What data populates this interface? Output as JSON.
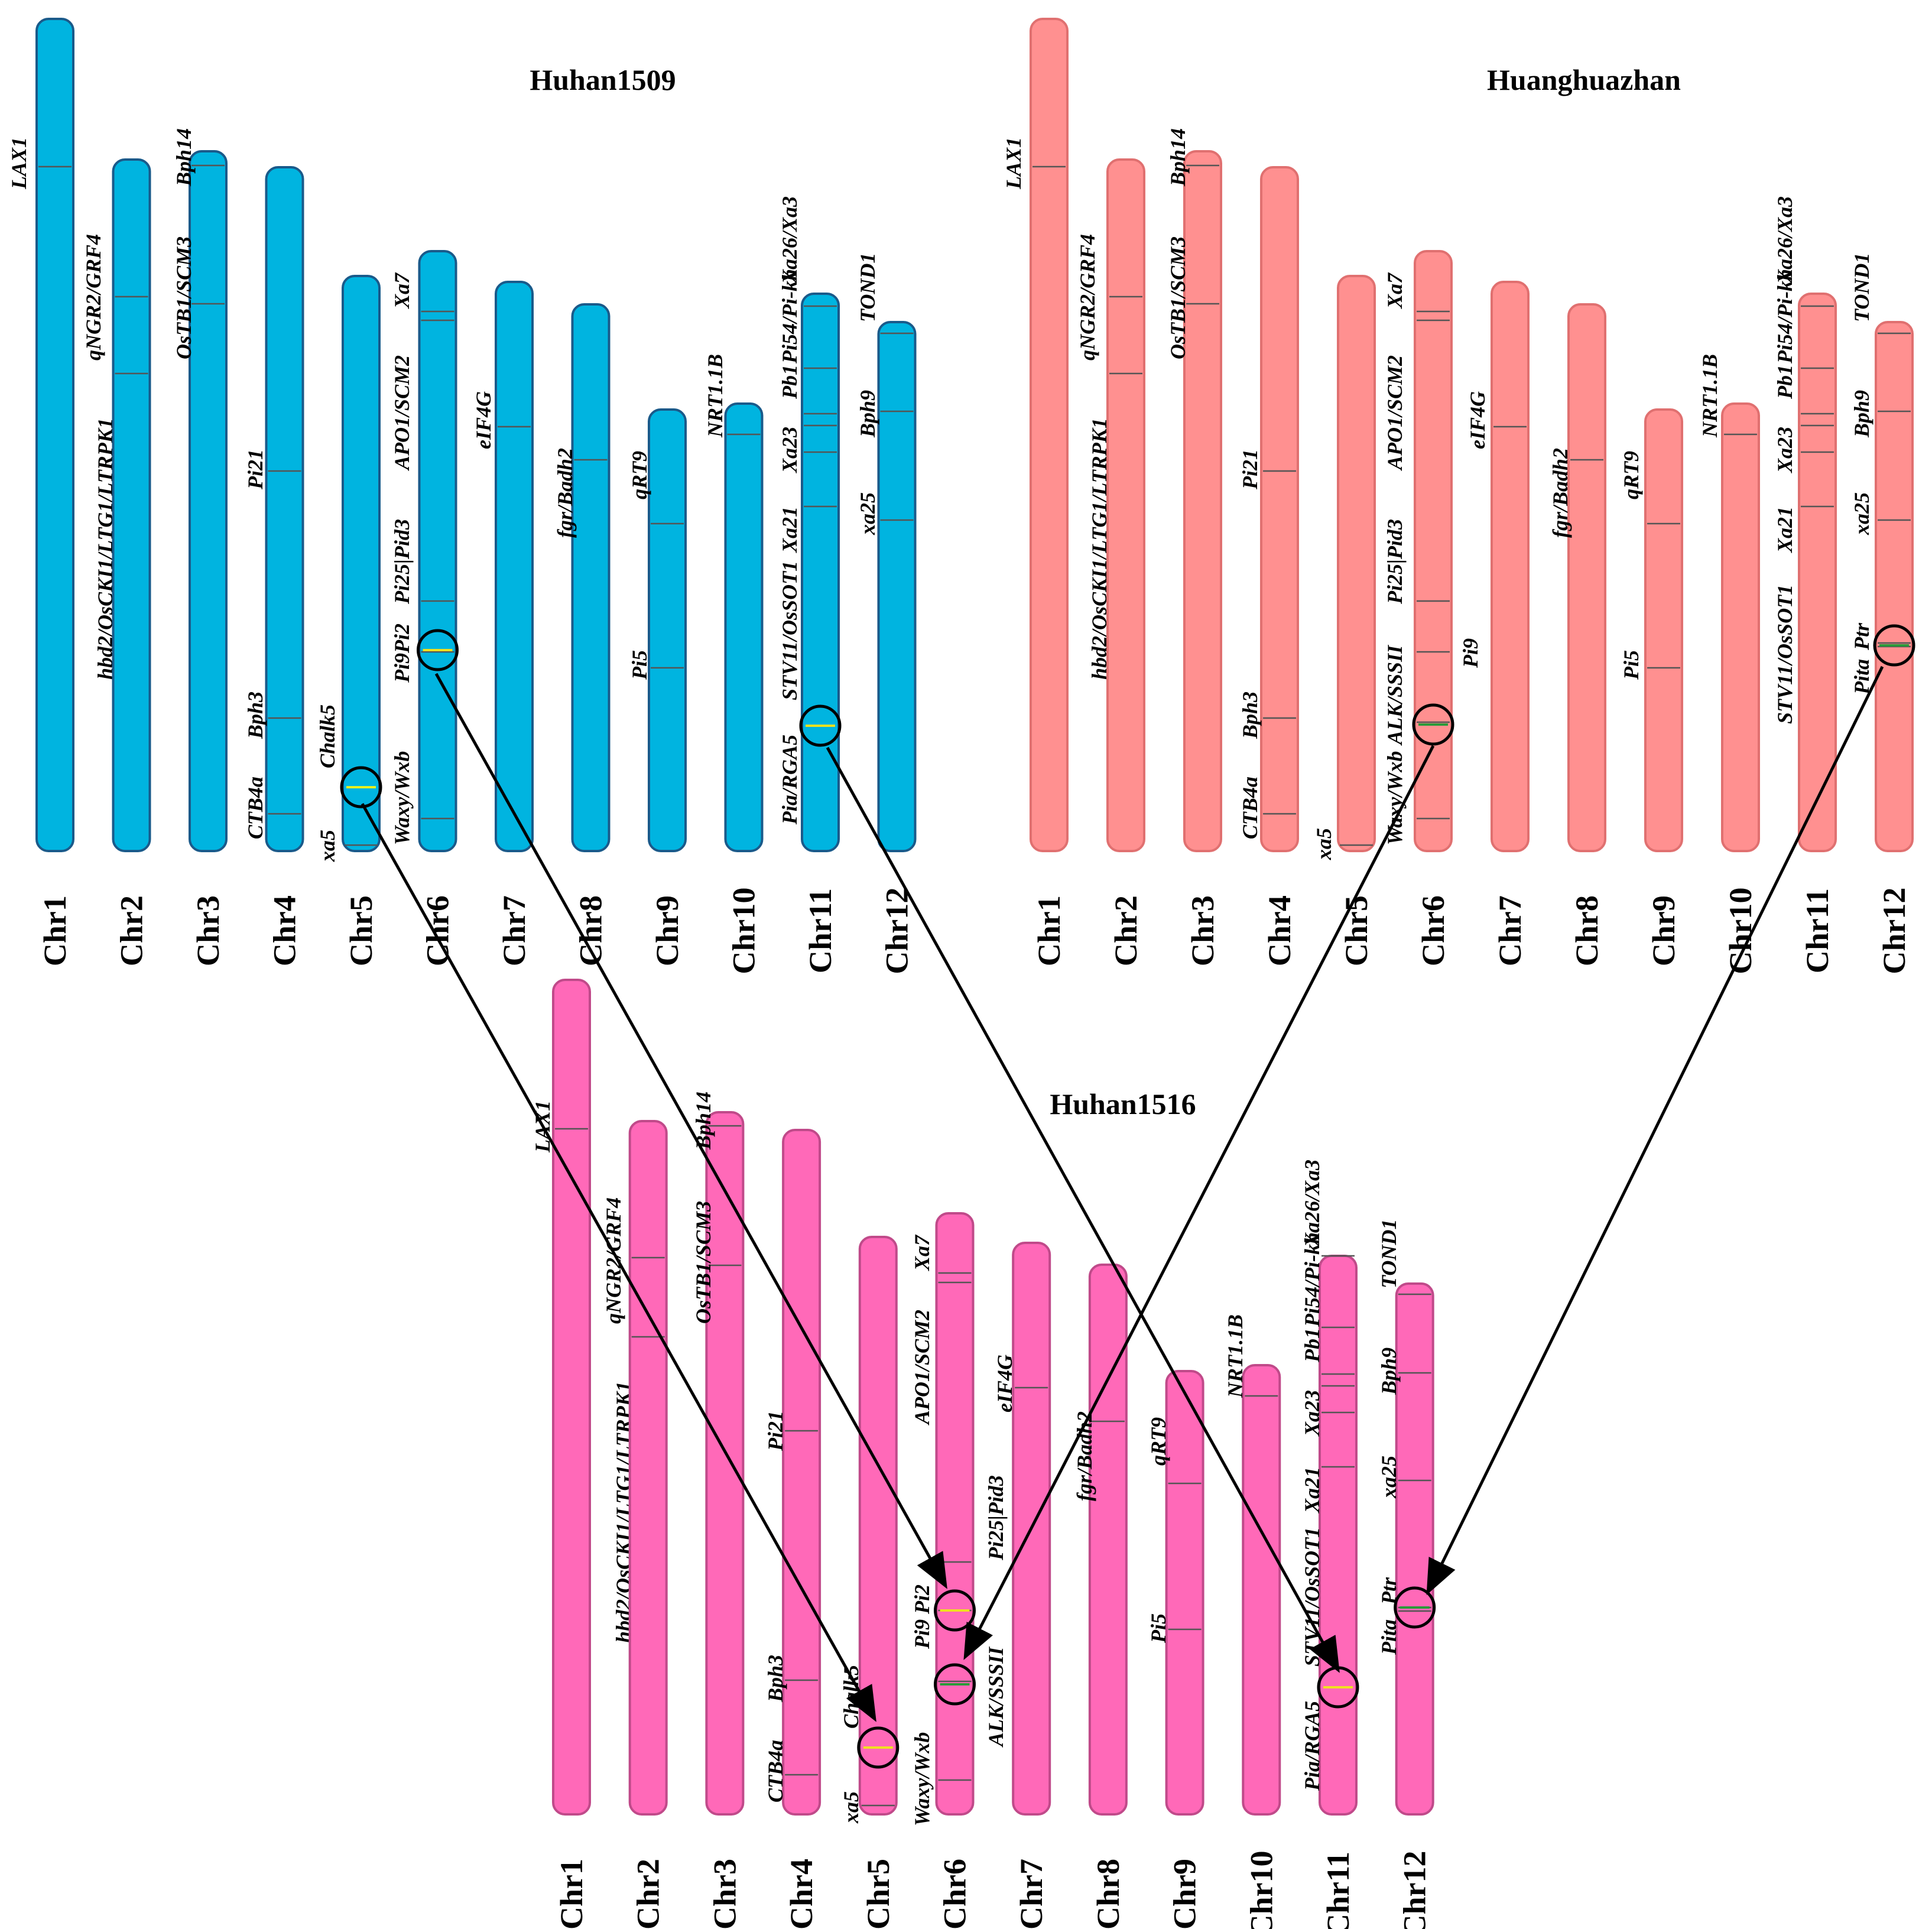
{
  "figure": {
    "colors": {
      "huhan1509": "#00b4e0",
      "huhan1509_edge": "#1a5a8a",
      "huanghuazhan": "#ff9090",
      "huanghuazhan_edge": "#e07070",
      "huhan1516": "#ff69b8",
      "huhan1516_edge": "#c04a8a",
      "yellow_marker": "#f0e020",
      "green_marker": "#2a9a3a"
    },
    "panels": [
      {
        "id": "huhan1509",
        "title": "Huhan1509",
        "chromosomes": [
          {
            "name": "Chr1",
            "genes": [
              "LAX1",
              "hbd2/OsCKI1/LTG1/LTRPK1"
            ]
          },
          {
            "name": "Chr2",
            "genes": [
              "qNGR2/GRF4"
            ]
          },
          {
            "name": "Chr3",
            "genes": [
              "Bph14",
              "OsTB1/SCM3"
            ]
          },
          {
            "name": "Chr4",
            "genes": [
              "Pi21",
              "Bph3",
              "CTB4a"
            ]
          },
          {
            "name": "Chr5",
            "genes": [
              "Chalk5",
              "xa5"
            ]
          },
          {
            "name": "Chr6",
            "genes": [
              "Xa7",
              "APO1/SCM2",
              "Pi25|Pid3",
              "Pi9Pi2",
              "Waxy/Wxb"
            ]
          },
          {
            "name": "Chr7",
            "genes": [
              "eIF4G"
            ]
          },
          {
            "name": "Chr8",
            "genes": [
              "fgr/Badh2"
            ]
          },
          {
            "name": "Chr9",
            "genes": [
              "qRT9",
              "Pi5"
            ]
          },
          {
            "name": "Chr10",
            "genes": [
              "NRT1.1B"
            ]
          },
          {
            "name": "Chr11",
            "genes": [
              "Xa26/Xa3",
              "Pi54/Pi-kh",
              "Pb1",
              "Xa23",
              "Xa21",
              "STV11/OsSOT1",
              "Pia/RGA5"
            ]
          },
          {
            "name": "Chr12",
            "genes": [
              "TOND1",
              "Bph9",
              "xa25"
            ]
          }
        ]
      },
      {
        "id": "huanghuazhan",
        "title": "Huanghuazhan",
        "chromosomes": [
          {
            "name": "Chr1",
            "genes": [
              "LAX1",
              "hbd2/OsCKI1/LTG1/LTRPK1"
            ]
          },
          {
            "name": "Chr2",
            "genes": [
              "qNGR2/GRF4"
            ]
          },
          {
            "name": "Chr3",
            "genes": [
              "Bph14",
              "OsTB1/SCM3"
            ]
          },
          {
            "name": "Chr4",
            "genes": [
              "Pi21",
              "Bph3",
              "CTB4a"
            ]
          },
          {
            "name": "Chr5",
            "genes": [
              "xa5"
            ]
          },
          {
            "name": "Chr6",
            "genes": [
              "Xa7",
              "APO1/SCM2",
              "Pi25|Pid3",
              "Pi9",
              "ALK/SSSII",
              "Waxy/Wxb"
            ]
          },
          {
            "name": "Chr7",
            "genes": [
              "eIF4G"
            ]
          },
          {
            "name": "Chr8",
            "genes": [
              "fgr/Badh2"
            ]
          },
          {
            "name": "Chr9",
            "genes": [
              "qRT9",
              "Pi5"
            ]
          },
          {
            "name": "Chr10",
            "genes": [
              "NRT1.1B"
            ]
          },
          {
            "name": "Chr11",
            "genes": [
              "Xa26/Xa3",
              "Pi54/Pi-kh",
              "Pb1",
              "Xa23",
              "Xa21",
              "STV11/OsSOT1"
            ]
          },
          {
            "name": "Chr12",
            "genes": [
              "TOND1",
              "Bph9",
              "xa25",
              "Ptr",
              "Pita"
            ]
          }
        ]
      },
      {
        "id": "huhan1516",
        "title": "Huhan1516",
        "chromosomes": [
          {
            "name": "Chr1",
            "genes": [
              "LAX1",
              "hbd2/OsCKI1/LTG1/LTRPK1"
            ]
          },
          {
            "name": "Chr2",
            "genes": [
              "qNGR2/GRF4"
            ]
          },
          {
            "name": "Chr3",
            "genes": [
              "Bph14",
              "OsTB1/SCM3"
            ]
          },
          {
            "name": "Chr4",
            "genes": [
              "Pi21",
              "Bph3",
              "CTB4a"
            ]
          },
          {
            "name": "Chr5",
            "genes": [
              "Chalk5",
              "xa5"
            ]
          },
          {
            "name": "Chr6",
            "genes": [
              "Xa7",
              "APO1/SCM2",
              "Pi25|Pid3",
              "Pi9 Pi2",
              "ALK/SSSII",
              "Waxy/Wxb"
            ]
          },
          {
            "name": "Chr7",
            "genes": [
              "eIF4G"
            ]
          },
          {
            "name": "Chr8",
            "genes": [
              "fgr/Badh2"
            ]
          },
          {
            "name": "Chr9",
            "genes": [
              "qRT9",
              "Pi5"
            ]
          },
          {
            "name": "Chr10",
            "genes": [
              "NRT1.1B"
            ]
          },
          {
            "name": "Chr11",
            "genes": [
              "Xa26/Xa3",
              "Pi54/Pi-kh",
              "Pb1",
              "Xa23",
              "Xa21",
              "STV11/OsSOT1",
              "Pia/RGA5"
            ]
          },
          {
            "name": "Chr12",
            "genes": [
              "TOND1",
              "Bph9",
              "xa25",
              "Ptr",
              "Pita"
            ]
          }
        ]
      }
    ],
    "inheritance_arrows": [
      {
        "from": "Huhan1509 Chr5 Chalk5",
        "to": "Huhan1516 Chr5 Chalk5"
      },
      {
        "from": "Huhan1509 Chr6 Pi9Pi2",
        "to": "Huhan1516 Chr6 Pi9 Pi2"
      },
      {
        "from": "Huhan1509 Chr11 Pia/RGA5",
        "to": "Huhan1516 Chr11 Pia/RGA5"
      },
      {
        "from": "Huanghuazhan Chr6 ALK/SSSII",
        "to": "Huhan1516 Chr6 ALK/SSSII"
      },
      {
        "from": "Huanghuazhan Chr12 Pita Ptr",
        "to": "Huhan1516 Chr12 Pita Ptr"
      }
    ]
  }
}
